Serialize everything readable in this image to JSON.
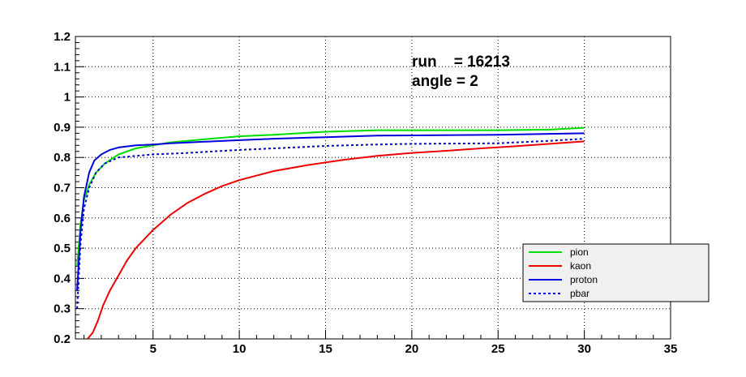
{
  "chart_data": {
    "type": "line",
    "title": "",
    "xlabel": "",
    "ylabel": "",
    "xlim": [
      0.5,
      35
    ],
    "ylim": [
      0.2,
      1.2
    ],
    "grid": true,
    "legend_position": "bottom-right",
    "x_ticks": [
      5,
      10,
      15,
      20,
      25,
      30,
      35
    ],
    "y_ticks": [
      0.2,
      0.3,
      0.4,
      0.5,
      0.6,
      0.7,
      0.8,
      0.9,
      1,
      1.1,
      1.2
    ],
    "x_tick_labels": [
      "5",
      "10",
      "15",
      "20",
      "25",
      "30",
      "35"
    ],
    "y_tick_labels": [
      "0.2",
      "0.3",
      "0.4",
      "0.5",
      "0.6",
      "0.7",
      "0.8",
      "0.9",
      "1",
      "1.1",
      "1.2"
    ],
    "annotations": [
      "run    = 16213",
      "angle = 2"
    ],
    "series": [
      {
        "name": "pion",
        "color": "#00dd00",
        "dash": "solid",
        "points": [
          [
            0.6,
            0.44
          ],
          [
            0.8,
            0.58
          ],
          [
            1.0,
            0.66
          ],
          [
            1.3,
            0.71
          ],
          [
            1.7,
            0.75
          ],
          [
            2.2,
            0.78
          ],
          [
            3.0,
            0.81
          ],
          [
            4.0,
            0.83
          ],
          [
            5.0,
            0.84
          ],
          [
            6.0,
            0.85
          ],
          [
            8.0,
            0.86
          ],
          [
            10.0,
            0.87
          ],
          [
            12.0,
            0.875
          ],
          [
            15.0,
            0.885
          ],
          [
            18.0,
            0.89
          ],
          [
            20.0,
            0.89
          ],
          [
            25.0,
            0.89
          ],
          [
            28.0,
            0.892
          ],
          [
            30.0,
            0.898
          ]
        ]
      },
      {
        "name": "kaon",
        "color": "#ee0000",
        "dash": "solid",
        "points": [
          [
            1.2,
            0.2
          ],
          [
            1.5,
            0.22
          ],
          [
            1.8,
            0.26
          ],
          [
            2.1,
            0.31
          ],
          [
            2.5,
            0.36
          ],
          [
            3.0,
            0.41
          ],
          [
            3.5,
            0.46
          ],
          [
            4.0,
            0.5
          ],
          [
            5.0,
            0.56
          ],
          [
            6.0,
            0.61
          ],
          [
            7.0,
            0.65
          ],
          [
            8.0,
            0.68
          ],
          [
            9.0,
            0.705
          ],
          [
            10.0,
            0.725
          ],
          [
            12.0,
            0.755
          ],
          [
            14.0,
            0.775
          ],
          [
            16.0,
            0.792
          ],
          [
            18.0,
            0.805
          ],
          [
            20.0,
            0.815
          ],
          [
            22.0,
            0.822
          ],
          [
            24.0,
            0.83
          ],
          [
            26.0,
            0.837
          ],
          [
            28.0,
            0.845
          ],
          [
            30.0,
            0.853
          ]
        ]
      },
      {
        "name": "proton",
        "color": "#0000dd",
        "dash": "solid",
        "points": [
          [
            0.6,
            0.36
          ],
          [
            0.8,
            0.56
          ],
          [
            1.0,
            0.67
          ],
          [
            1.3,
            0.75
          ],
          [
            1.6,
            0.79
          ],
          [
            2.0,
            0.81
          ],
          [
            2.5,
            0.825
          ],
          [
            3.0,
            0.833
          ],
          [
            4.0,
            0.84
          ],
          [
            5.0,
            0.843
          ],
          [
            6.0,
            0.847
          ],
          [
            8.0,
            0.852
          ],
          [
            10.0,
            0.857
          ],
          [
            12.0,
            0.862
          ],
          [
            15.0,
            0.867
          ],
          [
            18.0,
            0.872
          ],
          [
            20.0,
            0.873
          ],
          [
            25.0,
            0.875
          ],
          [
            28.0,
            0.878
          ],
          [
            30.0,
            0.88
          ]
        ]
      },
      {
        "name": "pbar",
        "color": "#0000dd",
        "dash": "dotted",
        "points": [
          [
            0.6,
            0.3
          ],
          [
            0.8,
            0.52
          ],
          [
            1.0,
            0.63
          ],
          [
            1.3,
            0.7
          ],
          [
            1.7,
            0.75
          ],
          [
            2.2,
            0.78
          ],
          [
            3.0,
            0.8
          ],
          [
            4.0,
            0.805
          ],
          [
            5.0,
            0.81
          ],
          [
            7.0,
            0.815
          ],
          [
            10.0,
            0.825
          ],
          [
            12.0,
            0.83
          ],
          [
            15.0,
            0.838
          ],
          [
            18.0,
            0.843
          ],
          [
            20.0,
            0.845
          ],
          [
            25.0,
            0.847
          ],
          [
            28.0,
            0.855
          ],
          [
            30.0,
            0.862
          ]
        ]
      }
    ]
  }
}
